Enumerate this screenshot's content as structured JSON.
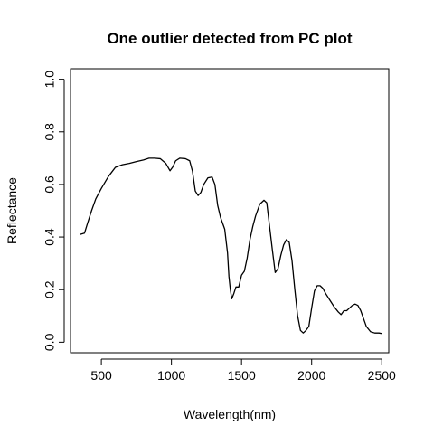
{
  "chart_data": {
    "type": "line",
    "title": "One outlier detected from PC plot",
    "xlabel": "Wavelength(nm)",
    "ylabel": "Reflectance",
    "xlim": [
      280,
      2550
    ],
    "ylim": [
      -0.04,
      1.04
    ],
    "xticks": [
      500,
      1000,
      1500,
      2000,
      2500
    ],
    "xtick_labels": [
      "500",
      "1000",
      "1500",
      "2000",
      "2500"
    ],
    "yticks": [
      0.0,
      0.2,
      0.4,
      0.6,
      0.8,
      1.0
    ],
    "ytick_labels": [
      "0.0",
      "0.2",
      "0.4",
      "0.6",
      "0.8",
      "1.0"
    ],
    "grid": false,
    "series": [
      {
        "color": "#000000",
        "x": [
          350,
          380,
          400,
          430,
          460,
          500,
          550,
          600,
          650,
          700,
          750,
          800,
          840,
          880,
          920,
          960,
          990,
          1010,
          1030,
          1060,
          1100,
          1130,
          1150,
          1170,
          1190,
          1210,
          1230,
          1260,
          1290,
          1310,
          1330,
          1350,
          1380,
          1400,
          1410,
          1420,
          1430,
          1445,
          1460,
          1480,
          1500,
          1520,
          1540,
          1560,
          1580,
          1600,
          1630,
          1660,
          1680,
          1700,
          1720,
          1740,
          1760,
          1780,
          1800,
          1820,
          1840,
          1860,
          1880,
          1900,
          1920,
          1940,
          1960,
          1980,
          2000,
          2020,
          2040,
          2060,
          2080,
          2100,
          2130,
          2160,
          2190,
          2210,
          2230,
          2250,
          2270,
          2290,
          2310,
          2330,
          2350,
          2370,
          2390,
          2420,
          2450,
          2480,
          2500
        ],
        "y": [
          0.41,
          0.415,
          0.45,
          0.5,
          0.545,
          0.585,
          0.63,
          0.665,
          0.675,
          0.68,
          0.687,
          0.693,
          0.7,
          0.7,
          0.698,
          0.68,
          0.652,
          0.667,
          0.69,
          0.7,
          0.698,
          0.69,
          0.65,
          0.575,
          0.558,
          0.57,
          0.6,
          0.625,
          0.628,
          0.6,
          0.52,
          0.475,
          0.43,
          0.34,
          0.25,
          0.2,
          0.165,
          0.185,
          0.21,
          0.21,
          0.255,
          0.27,
          0.32,
          0.39,
          0.44,
          0.48,
          0.525,
          0.54,
          0.53,
          0.44,
          0.35,
          0.265,
          0.28,
          0.33,
          0.37,
          0.39,
          0.38,
          0.31,
          0.2,
          0.1,
          0.045,
          0.035,
          0.045,
          0.06,
          0.13,
          0.195,
          0.215,
          0.215,
          0.205,
          0.185,
          0.16,
          0.135,
          0.115,
          0.105,
          0.12,
          0.12,
          0.13,
          0.14,
          0.145,
          0.14,
          0.12,
          0.09,
          0.06,
          0.04,
          0.035,
          0.035,
          0.033
        ]
      }
    ]
  }
}
